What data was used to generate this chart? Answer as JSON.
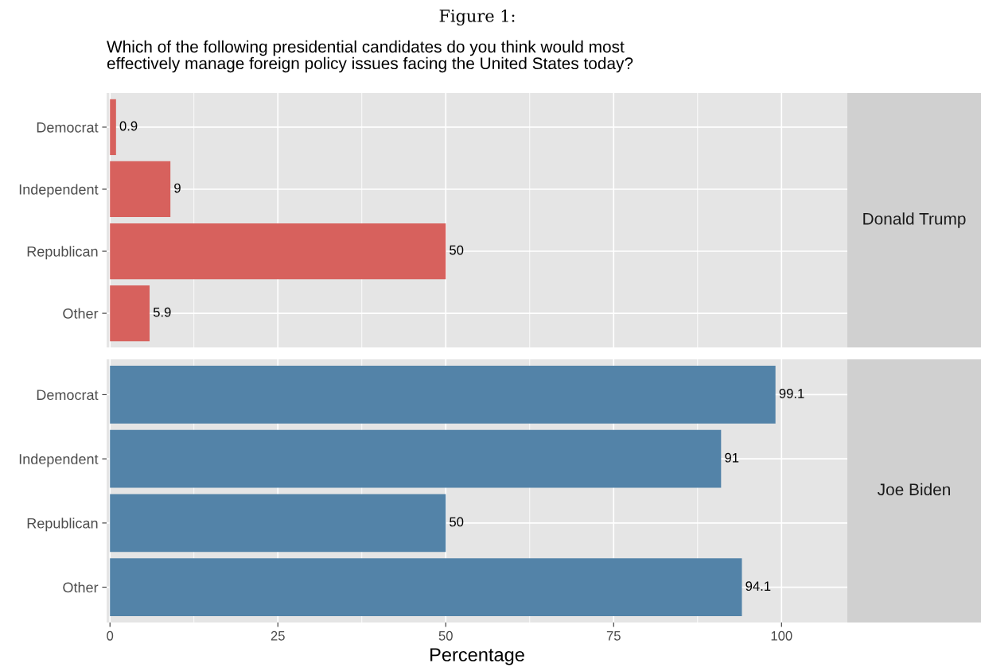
{
  "chart_data": [
    {
      "type": "bar",
      "orientation": "horizontal",
      "title": "Figure 1:",
      "subtitle": "Which of the following presidential candidates do you think would most\neffectively manage foreign policy issues facing the United States today?",
      "annotations": [
        "Donald Trump"
      ],
      "categories": [
        "Democrat",
        "Independent",
        "Republican",
        "Other"
      ],
      "values": [
        0.9,
        9,
        50,
        5.9
      ],
      "color": "#d7615d",
      "xlim": [
        -0.5,
        109.8
      ],
      "xticks": [
        0,
        25,
        50,
        75,
        100
      ],
      "tick_labels": "y",
      "grid": true,
      "data_labels": true
    },
    {
      "type": "bar",
      "orientation": "horizontal",
      "xlabel": "Percentage",
      "annotations": [
        "Joe Biden"
      ],
      "categories": [
        "Democrat",
        "Independent",
        "Republican",
        "Other"
      ],
      "values": [
        99.1,
        91,
        50,
        94.1
      ],
      "color": "#5383a8",
      "xlim": [
        -0.5,
        109.8
      ],
      "xticks": [
        0,
        25,
        50,
        75,
        100
      ],
      "grid": true,
      "data_labels": true
    }
  ]
}
